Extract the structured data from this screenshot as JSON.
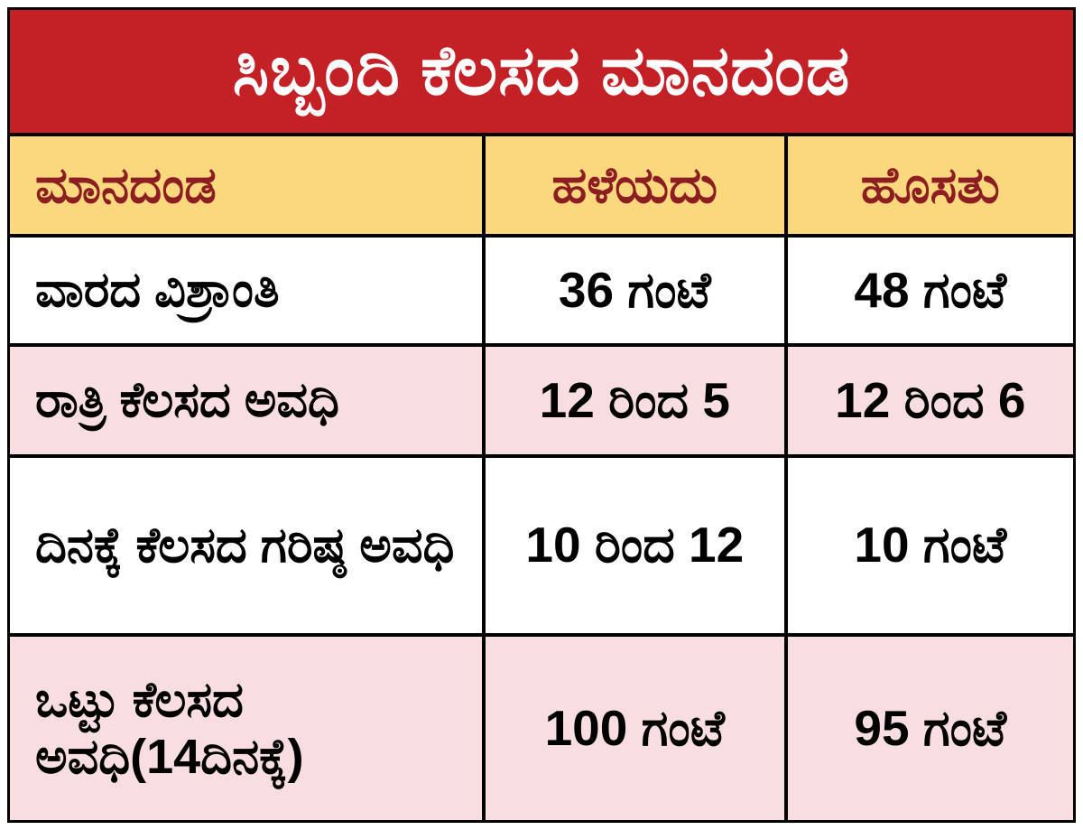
{
  "title": "ಸಿಬ್ಬಂದಿ ಕೆಲಸದ ಮಾನದಂಡ",
  "colors": {
    "title_bg": "#c42127",
    "title_text": "#ffffff",
    "header_bg": "#fbd87d",
    "header_text": "#8c1d21",
    "row_alt_bg": "#f8dee0",
    "row_bg": "#ffffff",
    "border": "#000000",
    "body_text": "#000000"
  },
  "chart_data": {
    "type": "table",
    "title": "ಸಿಬ್ಬಂದಿ ಕೆಲಸದ ಮಾನದಂಡ",
    "columns": [
      "ಮಾನದಂಡ",
      "ಹಳೆಯದು",
      "ಹೊಸತು"
    ],
    "rows": [
      [
        "ವಾರದ ವಿಶ್ರಾಂತಿ",
        "36 ಗಂಟೆ",
        "48 ಗಂಟೆ"
      ],
      [
        "ರಾತ್ರಿ ಕೆಲಸದ ಅವಧಿ",
        "12 ರಿಂದ 5",
        "12 ರಿಂದ 6"
      ],
      [
        "ದಿನಕ್ಕೆ ಕೆಲಸದ ಗರಿಷ್ಠ ಅವಧಿ",
        "10 ರಿಂದ 12",
        "10 ಗಂಟೆ"
      ],
      [
        "ಒಟ್ಟು ಕೆಲಸದ ಅವಧಿ(14ದಿನಕ್ಕೆ)",
        "100 ಗಂಟೆ",
        "95 ಗಂಟೆ"
      ]
    ],
    "layout": {
      "header_position": "top",
      "grid": true,
      "alternating_row_colors": [
        "white",
        "pink",
        "white",
        "pink"
      ]
    }
  }
}
